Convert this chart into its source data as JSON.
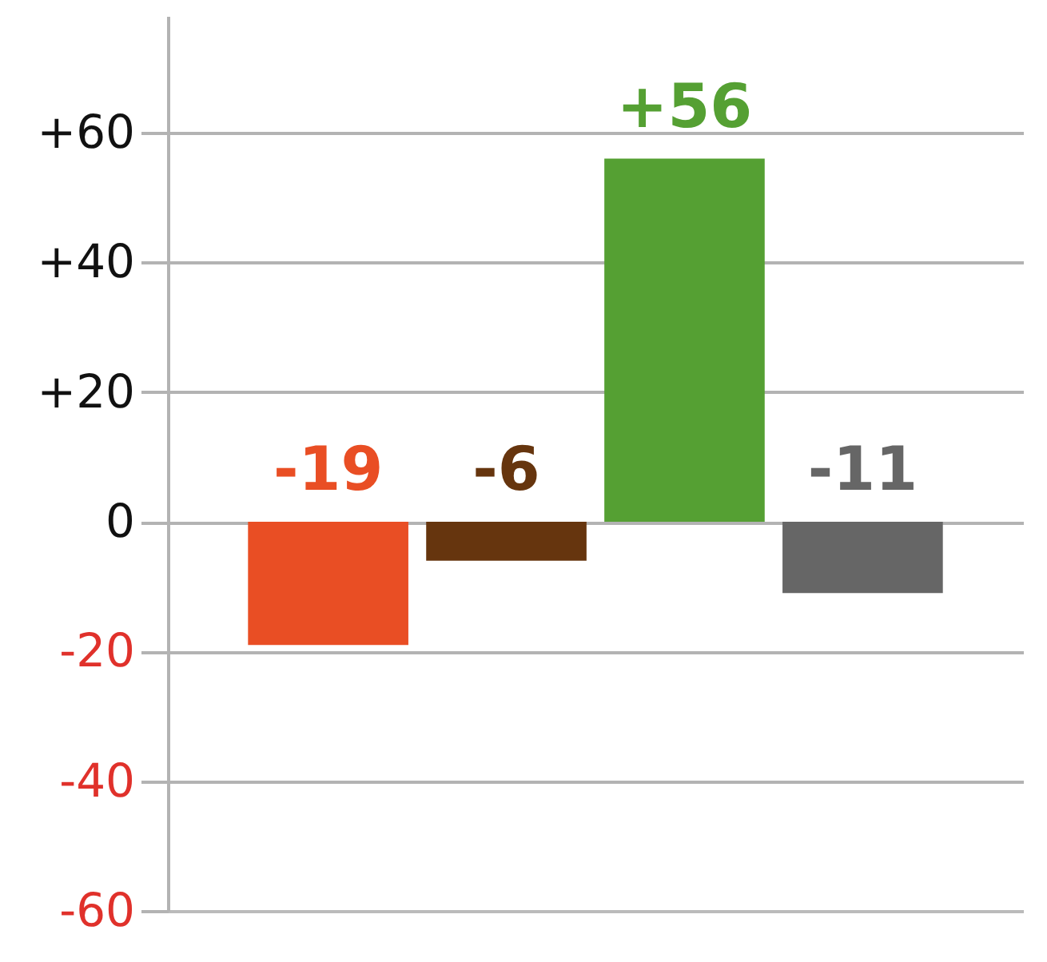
{
  "chart_data": {
    "type": "bar",
    "categories": [
      null,
      null,
      null,
      null
    ],
    "values": [
      -19,
      -6,
      56,
      -11
    ],
    "colors": [
      "#e94e24",
      "#66350e",
      "#55a033",
      "#666666"
    ],
    "value_labels": [
      "-19",
      "-6",
      "+56",
      "-11"
    ],
    "ylim": [
      -60,
      78
    ],
    "yticks": [
      {
        "value": -60,
        "label": "-60"
      },
      {
        "value": -40,
        "label": "-40"
      },
      {
        "value": -20,
        "label": "-20"
      },
      {
        "value": 0,
        "label": "0"
      },
      {
        "value": 20,
        "label": "+20"
      },
      {
        "value": 40,
        "label": "+40"
      },
      {
        "value": 60,
        "label": "+60"
      }
    ],
    "grid": "y"
  }
}
